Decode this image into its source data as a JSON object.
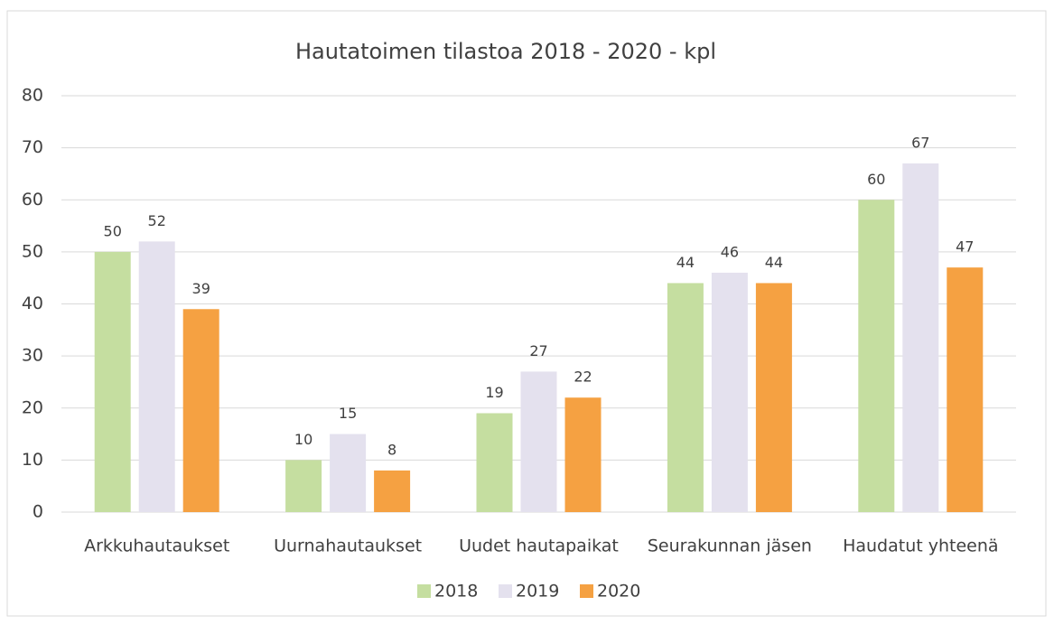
{
  "chart_data": {
    "type": "bar",
    "title": "Hautatoimen tilastoa 2018 - 2020 -  kpl",
    "categories": [
      "Arkkuhautaukset",
      "Uurnahautaukset",
      "Uudet hautapaikat",
      "Seurakunnan jäsen",
      "Haudatut yhteenä"
    ],
    "series": [
      {
        "name": "2018",
        "color": "#c5dea0",
        "values": [
          50,
          10,
          19,
          44,
          60
        ]
      },
      {
        "name": "2019",
        "color": "#e4e1ee",
        "values": [
          52,
          15,
          27,
          46,
          67
        ]
      },
      {
        "name": "2020",
        "color": "#f5a142",
        "values": [
          39,
          8,
          22,
          44,
          47
        ]
      }
    ],
    "ylim": [
      0,
      80
    ],
    "yticks": [
      0,
      10,
      20,
      30,
      40,
      50,
      60,
      70,
      80
    ],
    "grid": true,
    "legend": "bottom"
  }
}
